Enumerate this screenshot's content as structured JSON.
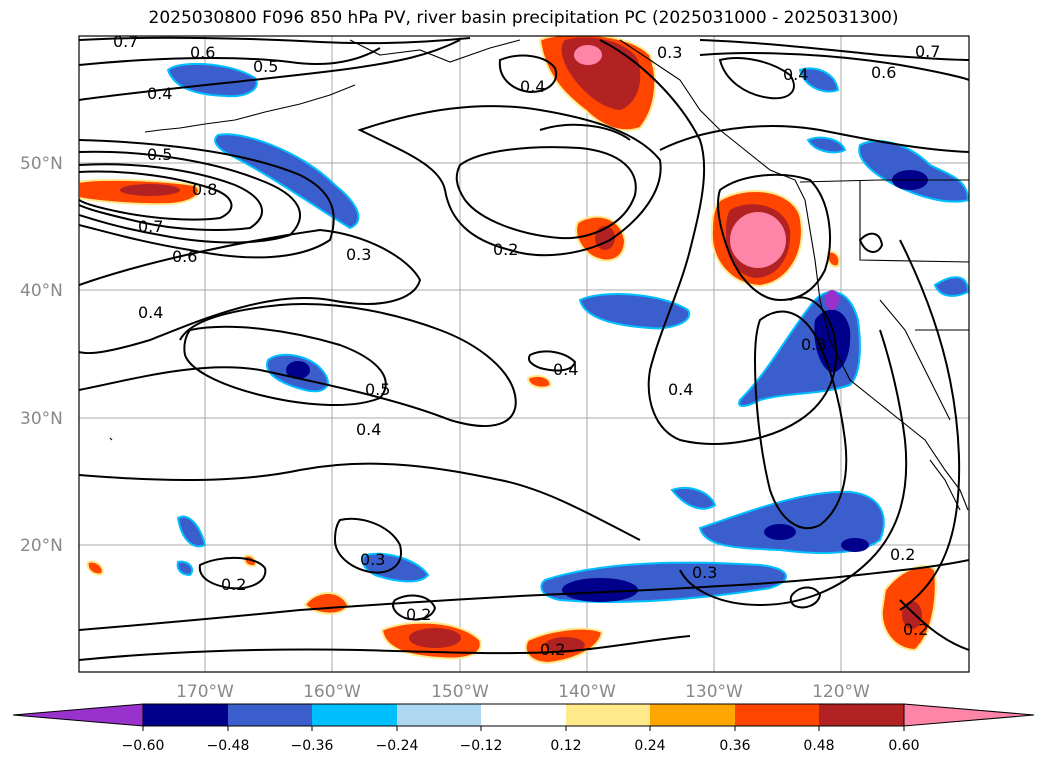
{
  "title": "2025030800 F096 850 hPa PV, river basin precipitation PC (2025031000 - 2025031300)",
  "latitude_labels": [
    "50°N",
    "40°N",
    "30°N",
    "20°N"
  ],
  "longitude_labels": [
    "170°W",
    "160°W",
    "150°W",
    "140°W",
    "130°W",
    "120°W"
  ],
  "colorbar": {
    "tick_labels": [
      "−0.60",
      "−0.48",
      "−0.36",
      "−0.24",
      "−0.12",
      "0.12",
      "0.24",
      "0.36",
      "0.48",
      "0.60"
    ],
    "colors": [
      "#9932cc",
      "#00008b",
      "#3a5fcd",
      "#00bfff",
      "#add8f0",
      "#ffffff",
      "#ffe98a",
      "#ffa500",
      "#ff4500",
      "#b22222",
      "#ff85a8"
    ]
  },
  "contour_labels": [
    "0.7",
    "0.6",
    "0.5",
    "0.4",
    "0.5",
    "0.8",
    "0.7",
    "0.6",
    "0.4",
    "0.3",
    "0.4",
    "0.3",
    "0.2",
    "0.4",
    "0.5",
    "0.4",
    "0.4",
    "0.3",
    "0.2",
    "0.2",
    "0.2",
    "0.3",
    "0.2",
    "0.2",
    "0.3",
    "0.4",
    "0.6",
    "0.7"
  ],
  "colors": {
    "contour": "#000000",
    "grid": "#aaaaaa",
    "coastline": "#000000"
  }
}
